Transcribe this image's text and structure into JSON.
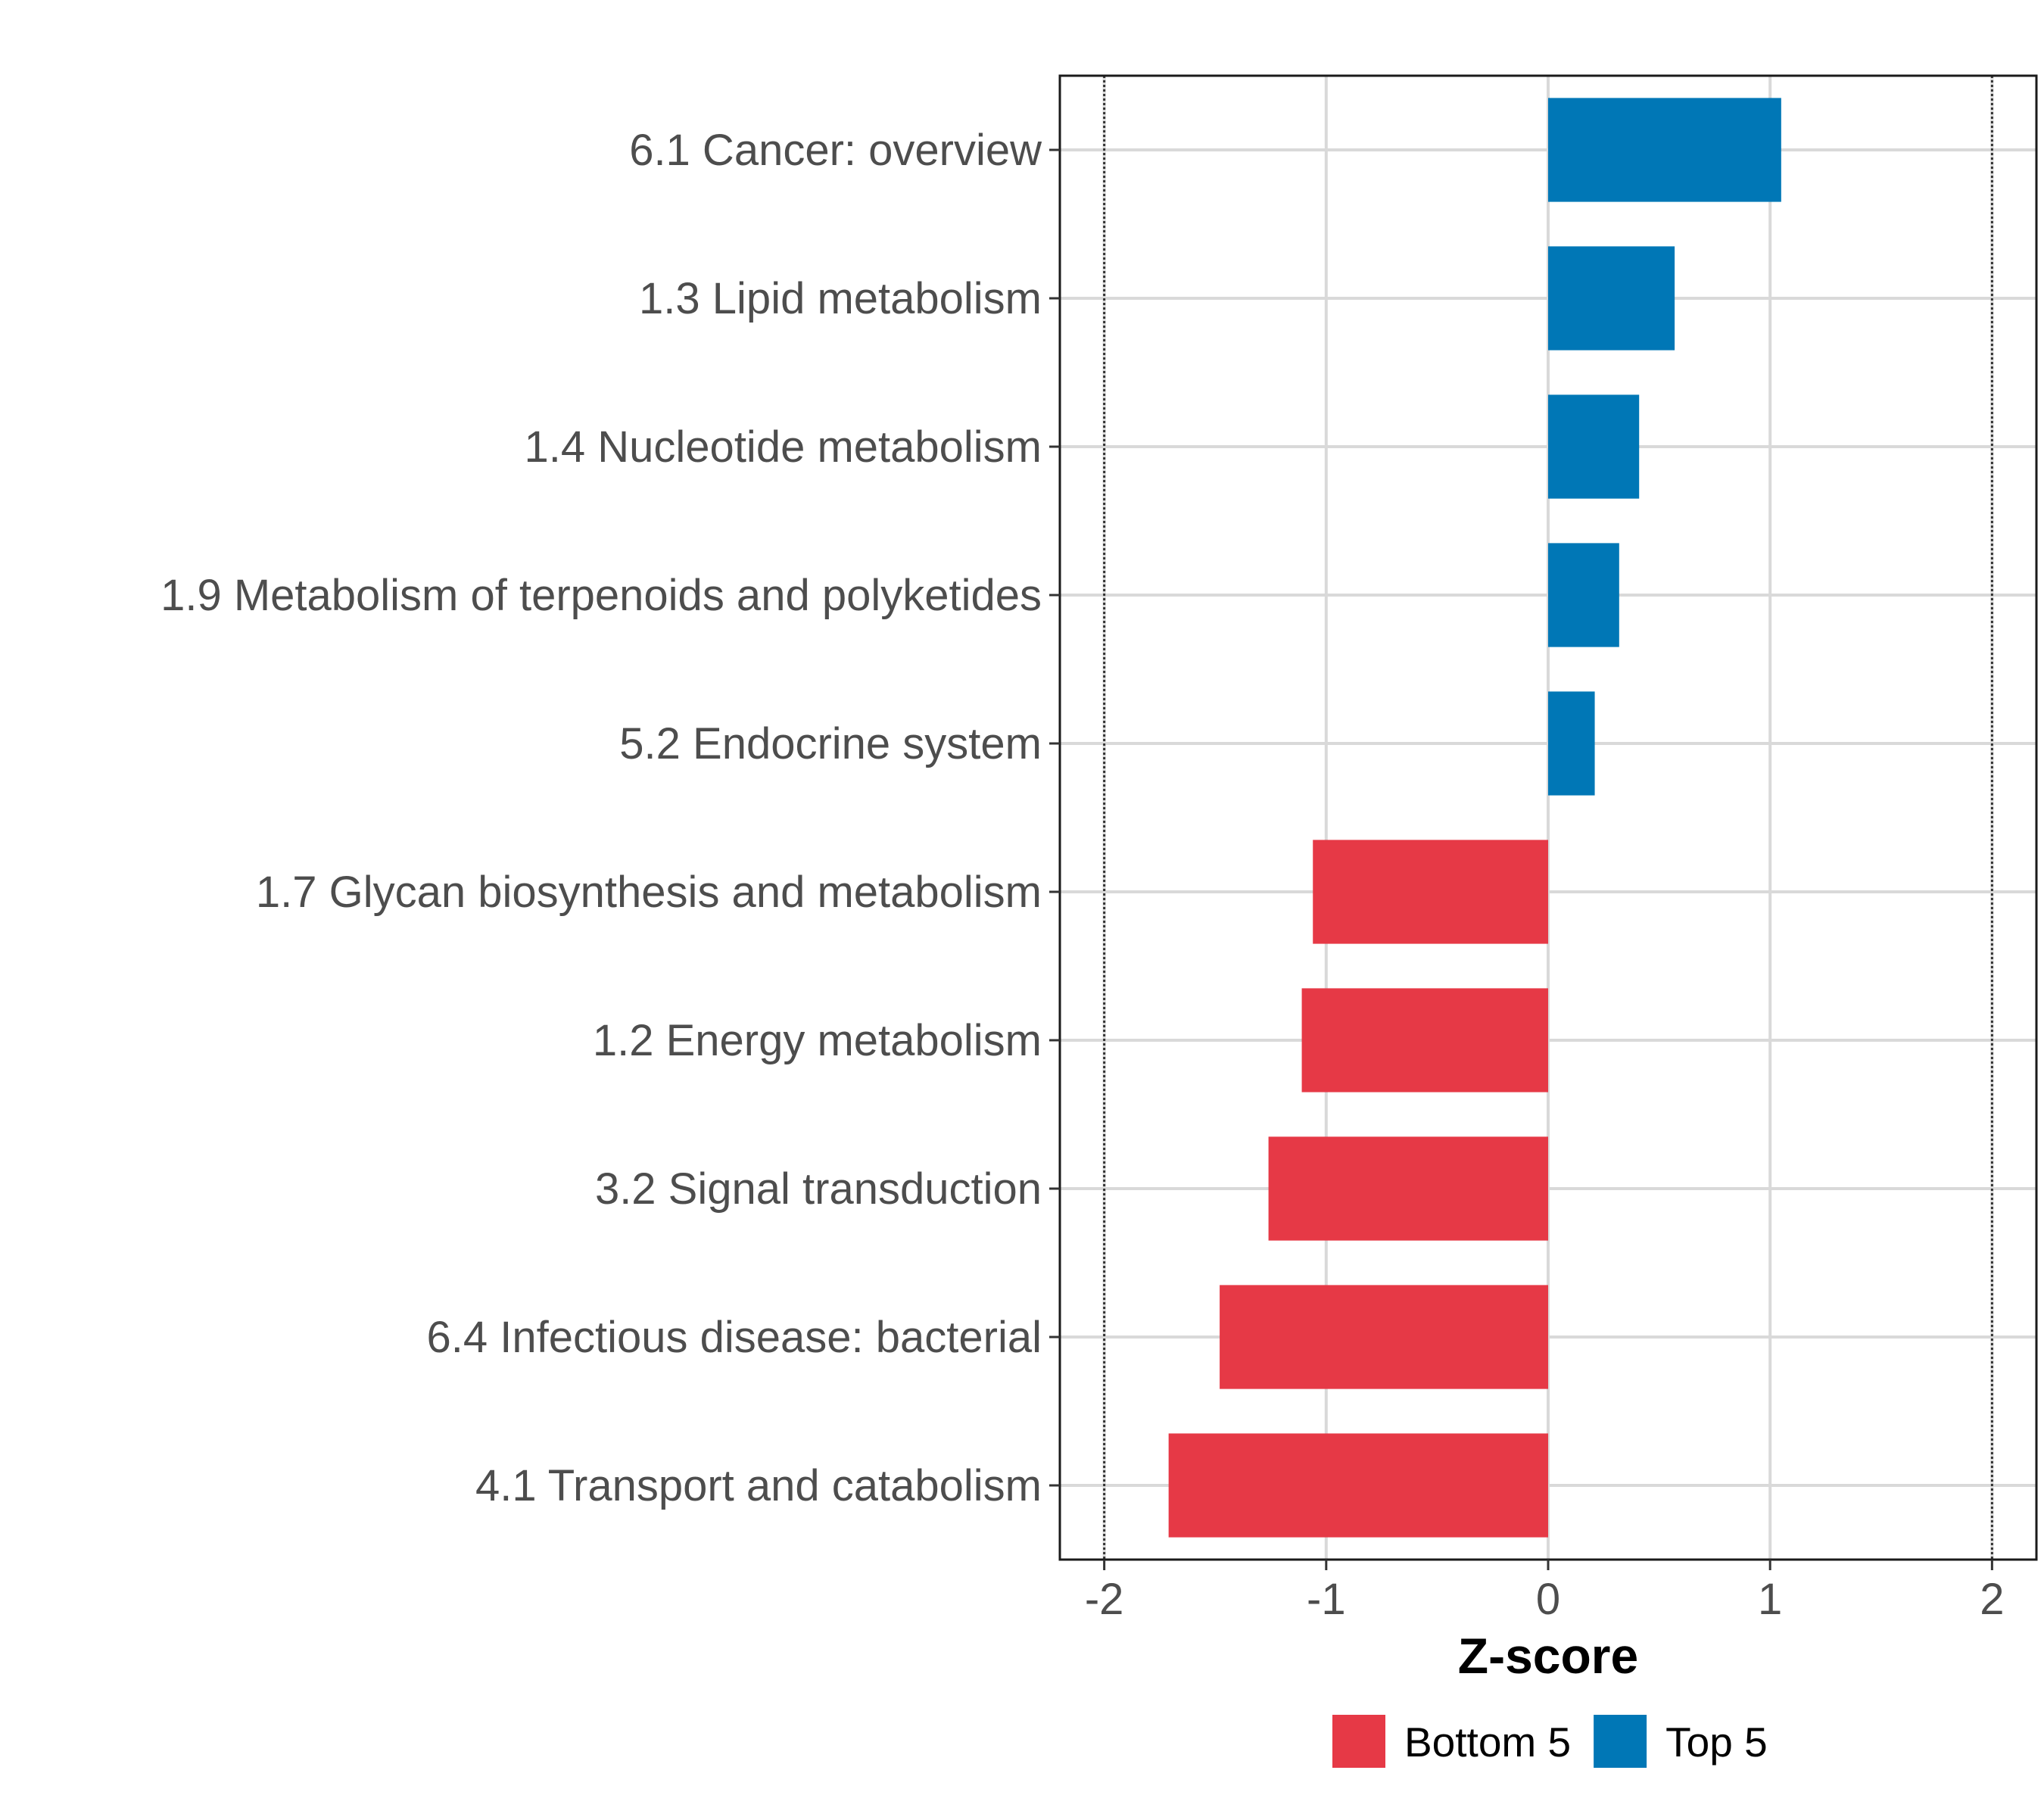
{
  "chart_data": {
    "type": "bar",
    "orientation": "horizontal",
    "title": "",
    "xlabel": "Z-score",
    "ylabel": "",
    "xlim": [
      -2.2,
      2.2
    ],
    "x_ticks": [
      -2,
      -1,
      0,
      1,
      2
    ],
    "x_tick_labels": [
      "-2",
      "-1",
      "0",
      "1",
      "2"
    ],
    "reference_lines": [
      -2,
      2
    ],
    "grid": true,
    "legend_position": "bottom",
    "categories": [
      "6.1 Cancer: overview",
      "1.3 Lipid metabolism",
      "1.4 Nucleotide metabolism",
      "1.9 Metabolism of terpenoids and polyketides",
      "5.2 Endocrine system",
      "1.7 Glycan biosynthesis and metabolism",
      "1.2 Energy metabolism",
      "3.2 Signal transduction",
      "6.4 Infectious disease: bacterial",
      "4.1 Transport and catabolism"
    ],
    "values": [
      1.05,
      0.57,
      0.41,
      0.32,
      0.21,
      -1.06,
      -1.11,
      -1.26,
      -1.48,
      -1.71
    ],
    "groups": [
      "Top 5",
      "Top 5",
      "Top 5",
      "Top 5",
      "Top 5",
      "Bottom 5",
      "Bottom 5",
      "Bottom 5",
      "Bottom 5",
      "Bottom 5"
    ],
    "legend": [
      {
        "name": "Bottom 5",
        "color": "#E63946"
      },
      {
        "name": "Top 5",
        "color": "#0077B6"
      }
    ]
  }
}
